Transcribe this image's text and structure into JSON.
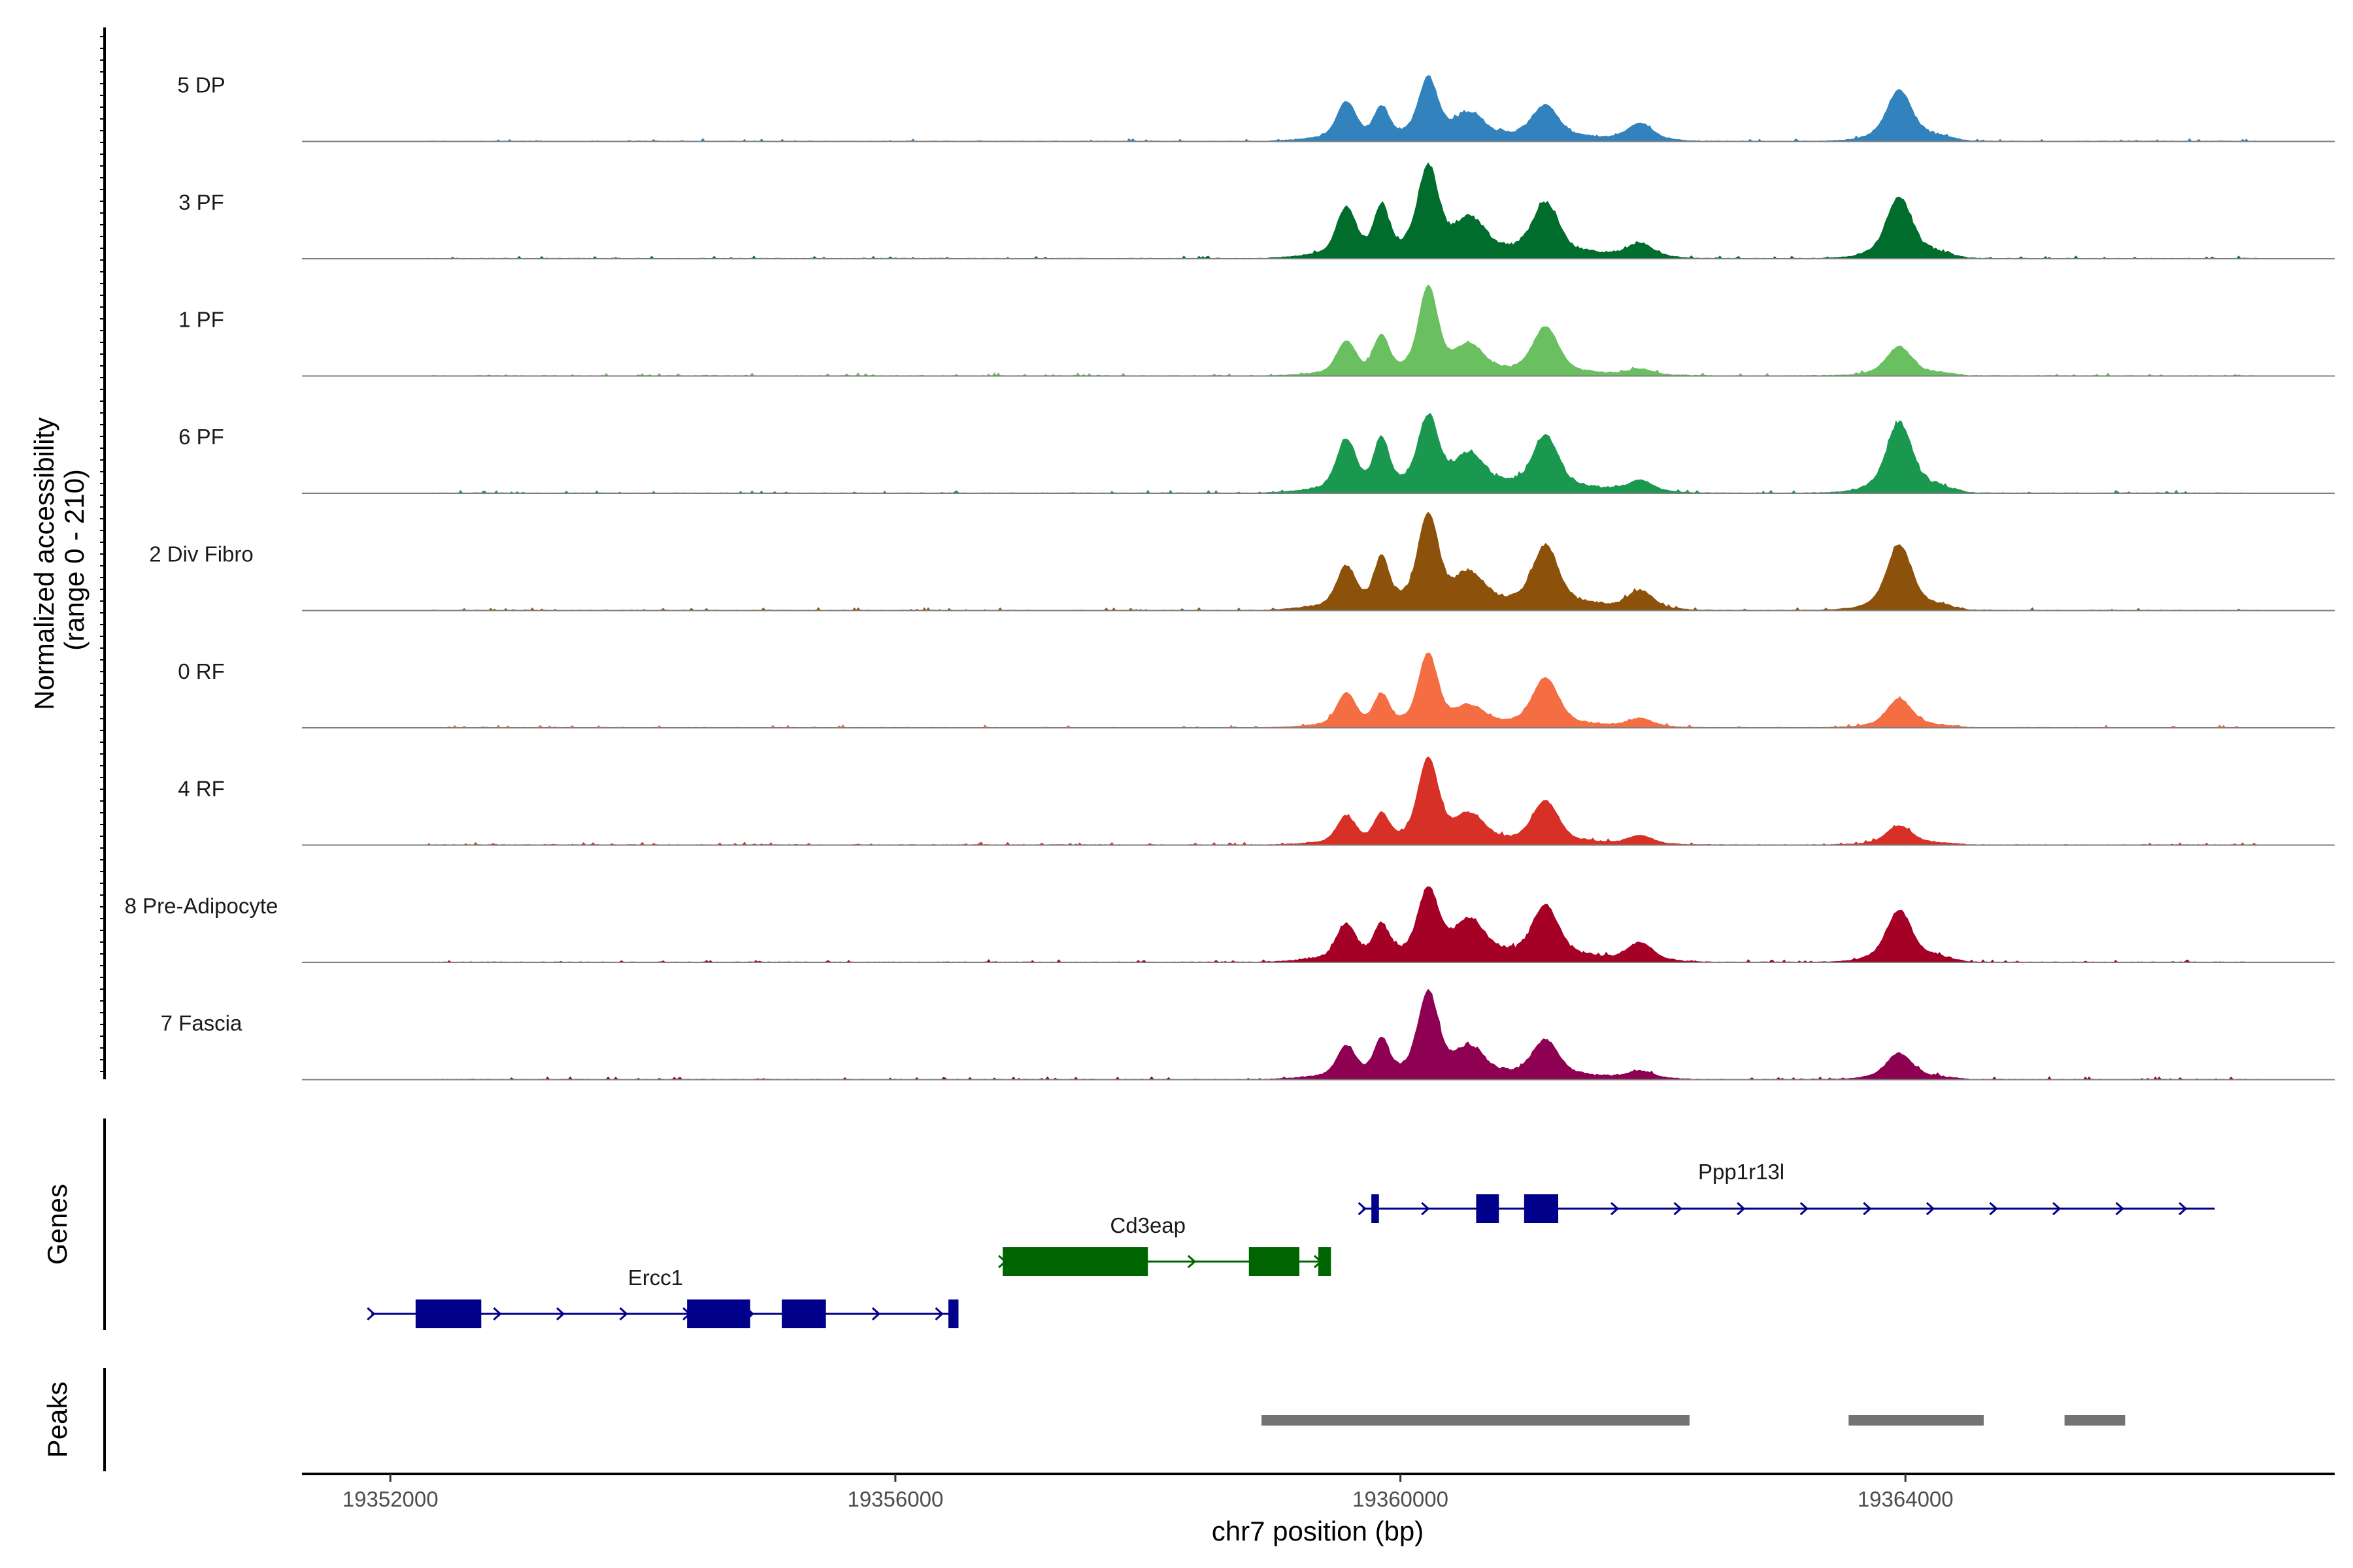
{
  "chart_data": {
    "type": "area",
    "title": "",
    "xlabel": "chr7 position (bp)",
    "ylabel": "Normalized accessibility\n(range 0 - 210)",
    "y_range": [
      0,
      210
    ],
    "xlim": [
      19351300,
      19367400
    ],
    "x_ticks": [
      {
        "value": 19352000,
        "label": "19352000"
      },
      {
        "value": 19356000,
        "label": "19356000"
      },
      {
        "value": 19360000,
        "label": "19360000"
      },
      {
        "value": 19364000,
        "label": "19364000"
      }
    ],
    "series": [
      {
        "name": "5 DP",
        "color": "#3182bd",
        "peaks": [
          {
            "pos": 19359570,
            "height": 62,
            "width": 70
          },
          {
            "pos": 19359850,
            "height": 50,
            "width": 55
          },
          {
            "pos": 19360220,
            "height": 100,
            "width": 70
          },
          {
            "pos": 19360550,
            "height": 38,
            "width": 110
          },
          {
            "pos": 19361150,
            "height": 55,
            "width": 95
          },
          {
            "pos": 19361900,
            "height": 28,
            "width": 90
          },
          {
            "pos": 19363950,
            "height": 78,
            "width": 90
          }
        ],
        "bumps": [
          {
            "from": 19358900,
            "to": 19362300,
            "height": 12
          },
          {
            "from": 19363600,
            "to": 19364500,
            "height": 14
          }
        ]
      },
      {
        "name": "3 PF",
        "color": "#006d2c",
        "peaks": [
          {
            "pos": 19359570,
            "height": 80,
            "width": 70
          },
          {
            "pos": 19359850,
            "height": 78,
            "width": 55
          },
          {
            "pos": 19360220,
            "height": 145,
            "width": 75
          },
          {
            "pos": 19360550,
            "height": 55,
            "width": 110
          },
          {
            "pos": 19361150,
            "height": 85,
            "width": 95
          },
          {
            "pos": 19361900,
            "height": 22,
            "width": 90
          },
          {
            "pos": 19363950,
            "height": 95,
            "width": 90
          }
        ],
        "bumps": [
          {
            "from": 19358900,
            "to": 19362300,
            "height": 18
          },
          {
            "from": 19363600,
            "to": 19364500,
            "height": 16
          }
        ]
      },
      {
        "name": "1 PF",
        "color": "#6abf60",
        "peaks": [
          {
            "pos": 19359570,
            "height": 55,
            "width": 70
          },
          {
            "pos": 19359850,
            "height": 62,
            "width": 55
          },
          {
            "pos": 19360220,
            "height": 145,
            "width": 70
          },
          {
            "pos": 19360550,
            "height": 45,
            "width": 110
          },
          {
            "pos": 19361150,
            "height": 78,
            "width": 95
          },
          {
            "pos": 19361900,
            "height": 10,
            "width": 90
          },
          {
            "pos": 19363950,
            "height": 45,
            "width": 90
          }
        ],
        "bumps": [
          {
            "from": 19358900,
            "to": 19362300,
            "height": 8
          },
          {
            "from": 19363600,
            "to": 19364500,
            "height": 8
          }
        ]
      },
      {
        "name": "6 PF",
        "color": "#1a9850",
        "peaks": [
          {
            "pos": 19359570,
            "height": 85,
            "width": 70
          },
          {
            "pos": 19359850,
            "height": 82,
            "width": 55
          },
          {
            "pos": 19360220,
            "height": 120,
            "width": 75
          },
          {
            "pos": 19360550,
            "height": 55,
            "width": 110
          },
          {
            "pos": 19361150,
            "height": 88,
            "width": 95
          },
          {
            "pos": 19361900,
            "height": 18,
            "width": 90
          },
          {
            "pos": 19363950,
            "height": 110,
            "width": 90
          }
        ],
        "bumps": [
          {
            "from": 19358900,
            "to": 19362300,
            "height": 16
          },
          {
            "from": 19363600,
            "to": 19364500,
            "height": 18
          }
        ]
      },
      {
        "name": "2 Div Fibro",
        "color": "#8c510a",
        "peaks": [
          {
            "pos": 19359570,
            "height": 68,
            "width": 70
          },
          {
            "pos": 19359850,
            "height": 78,
            "width": 55
          },
          {
            "pos": 19360220,
            "height": 150,
            "width": 75
          },
          {
            "pos": 19360550,
            "height": 50,
            "width": 110
          },
          {
            "pos": 19361150,
            "height": 100,
            "width": 95
          },
          {
            "pos": 19361900,
            "height": 30,
            "width": 90
          },
          {
            "pos": 19363950,
            "height": 105,
            "width": 90
          }
        ],
        "bumps": [
          {
            "from": 19358900,
            "to": 19362300,
            "height": 18
          },
          {
            "from": 19363600,
            "to": 19364500,
            "height": 12
          }
        ]
      },
      {
        "name": "0 RF",
        "color": "#f46d43",
        "peaks": [
          {
            "pos": 19359570,
            "height": 55,
            "width": 70
          },
          {
            "pos": 19359850,
            "height": 50,
            "width": 55
          },
          {
            "pos": 19360220,
            "height": 120,
            "width": 70
          },
          {
            "pos": 19360550,
            "height": 30,
            "width": 110
          },
          {
            "pos": 19361150,
            "height": 80,
            "width": 95
          },
          {
            "pos": 19361900,
            "height": 14,
            "width": 90
          },
          {
            "pos": 19363950,
            "height": 45,
            "width": 90
          }
        ],
        "bumps": [
          {
            "from": 19358900,
            "to": 19362300,
            "height": 8
          },
          {
            "from": 19363600,
            "to": 19364500,
            "height": 6
          }
        ]
      },
      {
        "name": "4 RF",
        "color": "#d73027",
        "peaks": [
          {
            "pos": 19359570,
            "height": 45,
            "width": 70
          },
          {
            "pos": 19359850,
            "height": 45,
            "width": 55
          },
          {
            "pos": 19360220,
            "height": 140,
            "width": 75
          },
          {
            "pos": 19360550,
            "height": 45,
            "width": 110
          },
          {
            "pos": 19361150,
            "height": 70,
            "width": 95
          },
          {
            "pos": 19361900,
            "height": 14,
            "width": 90
          },
          {
            "pos": 19363950,
            "height": 30,
            "width": 90
          }
        ],
        "bumps": [
          {
            "from": 19358900,
            "to": 19362300,
            "height": 8
          },
          {
            "from": 19363600,
            "to": 19364500,
            "height": 5
          }
        ]
      },
      {
        "name": "8 Pre-Adipocyte",
        "color": "#a50026",
        "peaks": [
          {
            "pos": 19359570,
            "height": 58,
            "width": 70
          },
          {
            "pos": 19359850,
            "height": 52,
            "width": 55
          },
          {
            "pos": 19360220,
            "height": 112,
            "width": 75
          },
          {
            "pos": 19360550,
            "height": 60,
            "width": 110
          },
          {
            "pos": 19361150,
            "height": 86,
            "width": 95
          },
          {
            "pos": 19361900,
            "height": 30,
            "width": 90
          },
          {
            "pos": 19363950,
            "height": 80,
            "width": 90
          }
        ],
        "bumps": [
          {
            "from": 19358900,
            "to": 19362300,
            "height": 18
          },
          {
            "from": 19363600,
            "to": 19364500,
            "height": 14
          }
        ]
      },
      {
        "name": "7 Fascia",
        "color": "#8e0152",
        "peaks": [
          {
            "pos": 19359570,
            "height": 52,
            "width": 70
          },
          {
            "pos": 19359850,
            "height": 60,
            "width": 55
          },
          {
            "pos": 19360220,
            "height": 140,
            "width": 75
          },
          {
            "pos": 19360550,
            "height": 45,
            "width": 110
          },
          {
            "pos": 19361150,
            "height": 60,
            "width": 95
          },
          {
            "pos": 19361900,
            "height": 12,
            "width": 90
          },
          {
            "pos": 19363950,
            "height": 40,
            "width": 90
          }
        ],
        "bumps": [
          {
            "from": 19358900,
            "to": 19362300,
            "height": 12
          },
          {
            "from": 19363600,
            "to": 19364500,
            "height": 8
          }
        ]
      }
    ],
    "genes_panel": {
      "title": "Genes",
      "genes": [
        {
          "name": "Ercc1",
          "strand": "+",
          "color": "#00008b",
          "start": 19351850,
          "end": 19356500,
          "exons": [
            [
              19352200,
              19352720
            ],
            [
              19354350,
              19354850
            ],
            [
              19355100,
              19355450
            ],
            [
              19356420,
              19356500
            ]
          ]
        },
        {
          "name": "Cd3eap",
          "strand": "+",
          "color": "#006400",
          "start": 19356850,
          "end": 19359450,
          "exons": [
            [
              19356850,
              19358000
            ],
            [
              19358800,
              19359200
            ],
            [
              19359350,
              19359450
            ]
          ]
        },
        {
          "name": "Ppp1r13l",
          "strand": "+",
          "color": "#00008b",
          "start": 19359700,
          "end": 19366450,
          "exons": [
            [
              19359770,
              19359830
            ],
            [
              19360600,
              19360780
            ],
            [
              19360980,
              19361250
            ]
          ]
        }
      ]
    },
    "peaks_panel": {
      "title": "Peaks",
      "color": "#737373",
      "regions": [
        [
          19358900,
          19362290
        ],
        [
          19363550,
          19364620
        ],
        [
          19365260,
          19365740
        ]
      ]
    }
  }
}
